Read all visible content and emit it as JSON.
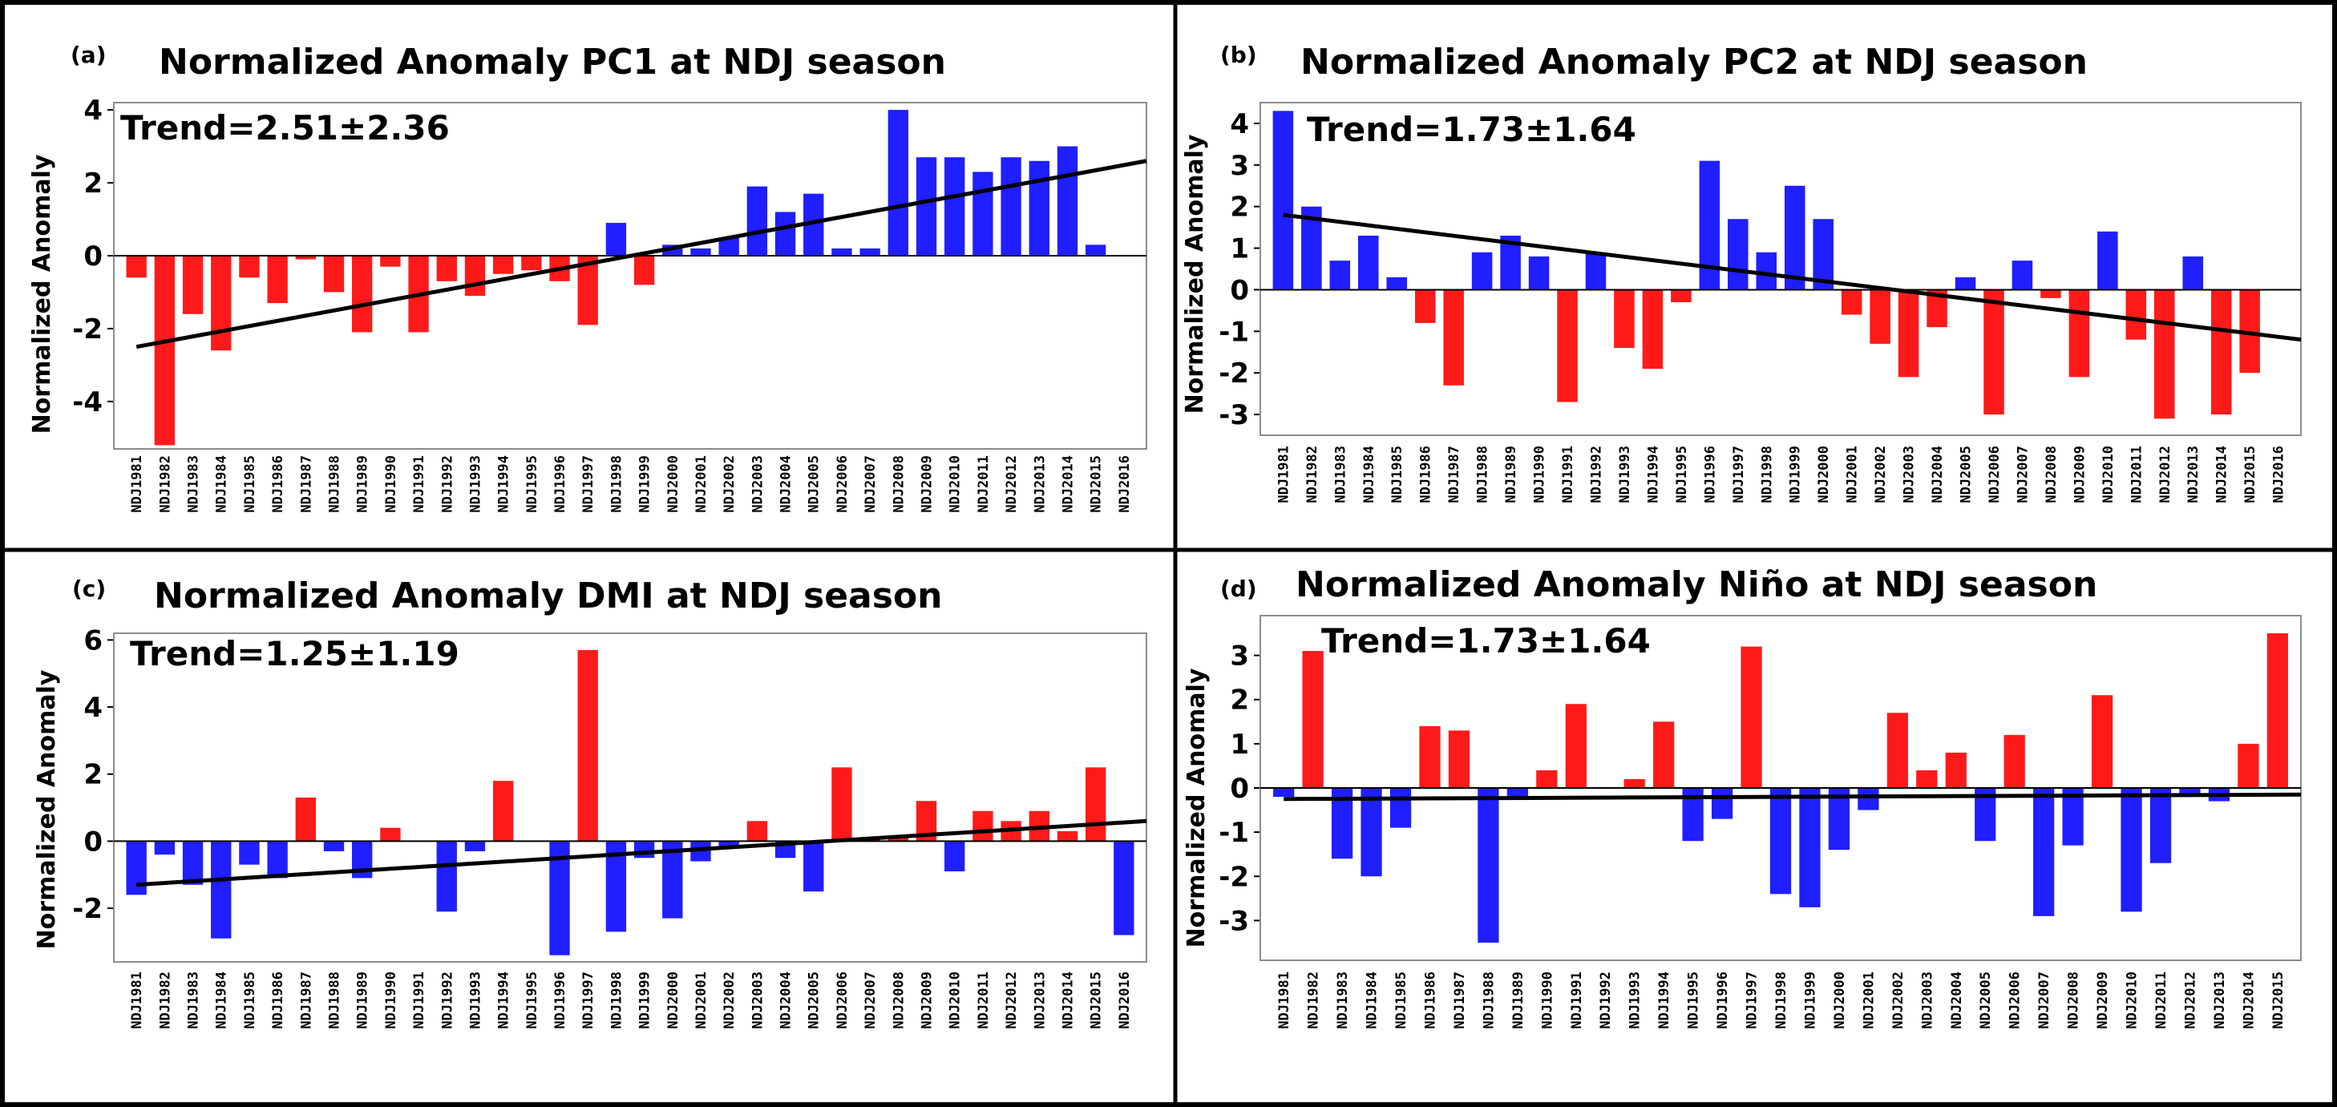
{
  "colors": {
    "positive": "#ff1a1a",
    "negative": "#1f1fff",
    "trend_line": "#000000"
  },
  "chart_data": [
    {
      "type": "bar",
      "panel_letter": "(a)",
      "title": "Normalized Anomaly PC1 at NDJ season",
      "trend_label": "Trend=2.51±2.36",
      "ylabel": "Normalized Anomaly",
      "ylim": [
        -5.3,
        4.2
      ],
      "yticks": [
        -4,
        -2,
        0,
        2,
        4
      ],
      "ytick_labels": [
        "-4",
        "-2",
        "0",
        "2",
        "4"
      ],
      "bar_color_rule": "red if value < 0, blue if value >= 0",
      "categories": [
        "NDJ1981",
        "NDJ1982",
        "NDJ1983",
        "NDJ1984",
        "NDJ1985",
        "NDJ1986",
        "NDJ1987",
        "NDJ1988",
        "NDJ1989",
        "NDJ1990",
        "NDJ1991",
        "NDJ1992",
        "NDJ1993",
        "NDJ1994",
        "NDJ1995",
        "NDJ1996",
        "NDJ1997",
        "NDJ1998",
        "NDJ1999",
        "NDJ2000",
        "NDJ2001",
        "NDJ2002",
        "NDJ2003",
        "NDJ2004",
        "NDJ2005",
        "NDJ2006",
        "NDJ2007",
        "NDJ2008",
        "NDJ2009",
        "NDJ2010",
        "NDJ2011",
        "NDJ2012",
        "NDJ2013",
        "NDJ2014",
        "NDJ2015",
        "NDJ2016"
      ],
      "values": [
        -0.6,
        -5.2,
        -1.6,
        -2.6,
        -0.6,
        -1.3,
        -0.1,
        -1.0,
        -2.1,
        -0.3,
        -2.1,
        -0.7,
        -1.1,
        -0.5,
        -0.4,
        -0.7,
        -1.9,
        0.9,
        -0.8,
        0.3,
        0.2,
        0.5,
        1.9,
        1.2,
        1.7,
        0.2,
        0.2,
        4.0,
        2.7,
        2.7,
        2.3,
        2.7,
        2.6,
        3.0,
        0.3,
        0.0
      ],
      "trend": {
        "start": -2.5,
        "end": 2.6
      }
    },
    {
      "type": "bar",
      "panel_letter": "(b)",
      "title": "Normalized Anomaly PC2 at NDJ season",
      "trend_label": "Trend=1.73±1.64",
      "ylabel": "Normalized Anomaly",
      "ylim": [
        -3.5,
        4.5
      ],
      "yticks": [
        -3,
        -2,
        -1,
        0,
        1,
        2,
        3,
        4
      ],
      "ytick_labels": [
        "-3",
        "-2",
        "-1",
        "0",
        "1",
        "2",
        "3",
        "4"
      ],
      "bar_color_rule": "red if value < 0, blue if value >= 0",
      "categories": [
        "NDJ1981",
        "NDJ1982",
        "NDJ1983",
        "NDJ1984",
        "NDJ1985",
        "NDJ1986",
        "NDJ1987",
        "NDJ1988",
        "NDJ1989",
        "NDJ1990",
        "NDJ1991",
        "NDJ1992",
        "NDJ1993",
        "NDJ1994",
        "NDJ1995",
        "NDJ1996",
        "NDJ1997",
        "NDJ1998",
        "NDJ1999",
        "NDJ2000",
        "NDJ2001",
        "NDJ2002",
        "NDJ2003",
        "NDJ2004",
        "NDJ2005",
        "NDJ2006",
        "NDJ2007",
        "NDJ2008",
        "NDJ2009",
        "NDJ2010",
        "NDJ2011",
        "NDJ2012",
        "NDJ2013",
        "NDJ2014",
        "NDJ2015",
        "NDJ2016"
      ],
      "values": [
        4.3,
        2.0,
        0.7,
        1.3,
        0.3,
        -0.8,
        -2.3,
        0.9,
        1.3,
        0.8,
        -2.7,
        0.9,
        -1.4,
        -1.9,
        -0.3,
        3.1,
        1.7,
        0.9,
        2.5,
        1.7,
        -0.6,
        -1.3,
        -2.1,
        -0.9,
        0.3,
        -3.0,
        0.7,
        -0.2,
        -2.1,
        1.4,
        -1.2,
        -3.1,
        0.8,
        -3.0,
        -2.0,
        0.0
      ],
      "trend": {
        "start": 1.8,
        "end": -1.2
      }
    },
    {
      "type": "bar",
      "panel_letter": "(c)",
      "title": "Normalized Anomaly DMI at NDJ season",
      "trend_label": "Trend=1.25±1.19",
      "ylabel": "Normalized Anomaly",
      "ylim": [
        -3.6,
        6.2
      ],
      "yticks": [
        -2,
        0,
        2,
        4,
        6
      ],
      "ytick_labels": [
        "-2",
        "0",
        "2",
        "4",
        "6"
      ],
      "bar_color_rule": "red if value > 0, blue if value <= 0",
      "categories": [
        "NDJ1981",
        "NDJ1982",
        "NDJ1983",
        "NDJ1984",
        "NDJ1985",
        "NDJ1986",
        "NDJ1987",
        "NDJ1988",
        "NDJ1989",
        "NDJ1990",
        "NDJ1991",
        "NDJ1992",
        "NDJ1993",
        "NDJ1994",
        "NDJ1995",
        "NDJ1996",
        "NDJ1997",
        "NDJ1998",
        "NDJ1999",
        "NDJ2000",
        "NDJ2001",
        "NDJ2002",
        "NDJ2003",
        "NDJ2004",
        "NDJ2005",
        "NDJ2006",
        "NDJ2007",
        "NDJ2008",
        "NDJ2009",
        "NDJ2010",
        "NDJ2011",
        "NDJ2012",
        "NDJ2013",
        "NDJ2014",
        "NDJ2015",
        "NDJ2016"
      ],
      "values": [
        -1.6,
        -0.4,
        -1.3,
        -2.9,
        -0.7,
        -1.1,
        1.3,
        -0.3,
        -1.1,
        0.4,
        0.0,
        -2.1,
        -0.3,
        1.8,
        0.0,
        -3.4,
        5.7,
        -2.7,
        -0.5,
        -2.3,
        -0.6,
        -0.2,
        0.6,
        -0.5,
        -1.5,
        2.2,
        0.05,
        0.1,
        1.2,
        -0.9,
        0.9,
        0.6,
        0.9,
        0.3,
        2.2,
        -2.8
      ],
      "trend": {
        "start": -1.3,
        "end": 0.6
      }
    },
    {
      "type": "bar",
      "panel_letter": "(d)",
      "title": "Normalized Anomaly Niño at NDJ season",
      "trend_label": "Trend=1.73±1.64",
      "ylabel": "Normalized Anomaly",
      "ylim": [
        -3.9,
        3.9
      ],
      "yticks": [
        -3,
        -2,
        -1,
        0,
        1,
        2,
        3
      ],
      "ytick_labels": [
        "-3",
        "-2",
        "-1",
        "0",
        "1",
        "2",
        "3"
      ],
      "bar_color_rule": "red if value > 0, blue if value <= 0",
      "categories": [
        "NDJ1981",
        "NDJ1982",
        "NDJ1983",
        "NDJ1984",
        "NDJ1985",
        "NDJ1986",
        "NDJ1987",
        "NDJ1988",
        "NDJ1989",
        "NDJ1990",
        "NDJ1991",
        "NDJ1992",
        "NDJ1993",
        "NDJ1994",
        "NDJ1995",
        "NDJ1996",
        "NDJ1997",
        "NDJ1998",
        "NDJ1999",
        "NDJ2000",
        "NDJ2001",
        "NDJ2002",
        "NDJ2003",
        "NDJ2004",
        "NDJ2005",
        "NDJ2006",
        "NDJ2007",
        "NDJ2008",
        "NDJ2009",
        "NDJ2010",
        "NDJ2011",
        "NDJ2012",
        "NDJ2013",
        "NDJ2014",
        "NDJ2015"
      ],
      "values": [
        -0.2,
        3.1,
        -1.6,
        -2.0,
        -0.9,
        1.4,
        1.3,
        -3.5,
        -0.2,
        0.4,
        1.9,
        0.0,
        0.2,
        1.5,
        -1.2,
        -0.7,
        3.2,
        -2.4,
        -2.7,
        -1.4,
        -0.5,
        1.7,
        0.4,
        0.8,
        -1.2,
        1.2,
        -2.9,
        -1.3,
        2.1,
        -2.8,
        -1.7,
        -0.2,
        -0.3,
        1.0,
        3.5
      ],
      "trend": {
        "start": -0.25,
        "end": -0.15
      }
    }
  ]
}
